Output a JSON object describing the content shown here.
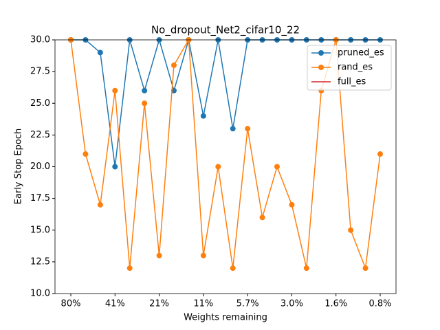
{
  "chart_data": {
    "type": "line",
    "title": "No_dropout_Net2_cifar10_22",
    "xlabel": "Weights remaining",
    "ylabel": "Early Stop Epoch",
    "categories": [
      "80%",
      null,
      null,
      "41%",
      null,
      null,
      "21%",
      null,
      null,
      "11%",
      null,
      null,
      "5.7%",
      null,
      null,
      "3.0%",
      null,
      null,
      "1.6%",
      null,
      null,
      "0.8%"
    ],
    "series": [
      {
        "name": "pruned_es",
        "color": "#1f77b4",
        "values": [
          30,
          30,
          29,
          20,
          30,
          26,
          30,
          26,
          30,
          24,
          30,
          23,
          30,
          30,
          30,
          30,
          30,
          30,
          30,
          30,
          30,
          30
        ]
      },
      {
        "name": "rand_es",
        "color": "#ff7f0e",
        "values": [
          30,
          21,
          17,
          26,
          12,
          25,
          13,
          28,
          30,
          13,
          20,
          12,
          23,
          16,
          20,
          17,
          12,
          26,
          30,
          15,
          12,
          21
        ]
      },
      {
        "name": "full_es",
        "color": "#d62728",
        "values": [
          null,
          null,
          null,
          null,
          null,
          null,
          null,
          null,
          null,
          null,
          null,
          null,
          null,
          null,
          null,
          null,
          null,
          null,
          null,
          null,
          null,
          null
        ]
      }
    ],
    "ylim": [
      10,
      30
    ],
    "yticks": [
      {
        "value": 10,
        "label": "10.0"
      },
      12.5,
      {
        "value": 15,
        "label": "15.0"
      },
      17.5,
      {
        "value": 20,
        "label": "20.0"
      },
      22.5,
      {
        "value": 25,
        "label": "25.0"
      },
      27.5,
      {
        "value": 30,
        "label": "30.0"
      }
    ],
    "legend": "upper right"
  }
}
